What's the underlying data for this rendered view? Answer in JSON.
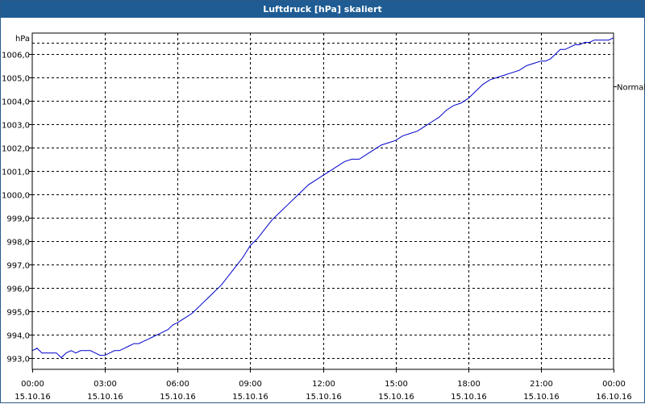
{
  "window": {
    "title": "Luftdruck [hPa] skaliert"
  },
  "chart_data": {
    "type": "line",
    "title": "Luftdruck [hPa] skaliert",
    "ylabel": "hPa",
    "xlabel": "",
    "ylim": [
      992.5,
      1006.9
    ],
    "xlim": [
      0,
      24
    ],
    "grid": true,
    "legend_position": "right",
    "y_ticks": [
      "993,0",
      "994,0",
      "995,0",
      "996,0",
      "997,0",
      "998,0",
      "999,0",
      "1000,0",
      "1001,0",
      "1002,0",
      "1003,0",
      "1004,0",
      "1005,0",
      "1006,0"
    ],
    "y_tick_values": [
      993,
      994,
      995,
      996,
      997,
      998,
      999,
      1000,
      1001,
      1002,
      1003,
      1004,
      1005,
      1006
    ],
    "x_tick_values": [
      0,
      3,
      6,
      9,
      12,
      15,
      18,
      21,
      24
    ],
    "x_ticks": [
      {
        "time": "00:00",
        "date": "15.10.16"
      },
      {
        "time": "03:00",
        "date": "15.10.16"
      },
      {
        "time": "06:00",
        "date": "15.10.16"
      },
      {
        "time": "09:00",
        "date": "15.10.16"
      },
      {
        "time": "12:00",
        "date": "15.10.16"
      },
      {
        "time": "15:00",
        "date": "15.10.16"
      },
      {
        "time": "18:00",
        "date": "15.10.16"
      },
      {
        "time": "21:00",
        "date": "15.10.16"
      },
      {
        "time": "00:00",
        "date": "16.10.16"
      }
    ],
    "series": [
      {
        "name": "Normal",
        "color": "#0000cc",
        "x": [
          0,
          0.2,
          0.4,
          0.6,
          0.8,
          1.0,
          1.2,
          1.4,
          1.6,
          1.8,
          2.0,
          2.2,
          2.4,
          2.6,
          2.8,
          3.0,
          3.2,
          3.4,
          3.6,
          3.8,
          4.0,
          4.2,
          4.4,
          4.6,
          4.8,
          5.0,
          5.2,
          5.4,
          5.6,
          5.8,
          6.0,
          6.3,
          6.6,
          6.9,
          7.2,
          7.5,
          7.8,
          8.1,
          8.4,
          8.7,
          9.0,
          9.3,
          9.6,
          9.9,
          10.2,
          10.5,
          10.8,
          11.1,
          11.4,
          11.7,
          12.0,
          12.3,
          12.6,
          12.9,
          13.2,
          13.5,
          13.8,
          14.1,
          14.4,
          14.7,
          15.0,
          15.3,
          15.6,
          15.9,
          16.2,
          16.5,
          16.8,
          17.1,
          17.4,
          17.7,
          18.0,
          18.3,
          18.6,
          18.9,
          19.2,
          19.5,
          19.8,
          20.1,
          20.4,
          20.7,
          21.0,
          21.2,
          21.4,
          21.6,
          21.8,
          22.0,
          22.2,
          22.4,
          22.6,
          22.8,
          23.0,
          23.2,
          23.4,
          23.6,
          23.8,
          24.0
        ],
        "values": [
          993.3,
          993.4,
          993.2,
          993.2,
          993.2,
          993.2,
          993.0,
          993.2,
          993.3,
          993.2,
          993.3,
          993.3,
          993.3,
          993.2,
          993.1,
          993.1,
          993.2,
          993.3,
          993.3,
          993.4,
          993.5,
          993.6,
          993.6,
          993.7,
          993.8,
          993.9,
          994.0,
          994.1,
          994.2,
          994.4,
          994.5,
          994.7,
          994.9,
          995.2,
          995.5,
          995.8,
          996.1,
          996.5,
          996.9,
          997.3,
          997.8,
          998.1,
          998.5,
          998.9,
          999.2,
          999.5,
          999.8,
          1000.1,
          1000.4,
          1000.6,
          1000.8,
          1001.0,
          1001.2,
          1001.4,
          1001.5,
          1001.5,
          1001.7,
          1001.9,
          1002.1,
          1002.2,
          1002.3,
          1002.5,
          1002.6,
          1002.7,
          1002.9,
          1003.1,
          1003.3,
          1003.6,
          1003.8,
          1003.9,
          1004.1,
          1004.4,
          1004.7,
          1004.9,
          1005.0,
          1005.1,
          1005.2,
          1005.3,
          1005.5,
          1005.6,
          1005.7,
          1005.7,
          1005.8,
          1006.0,
          1006.2,
          1006.2,
          1006.3,
          1006.4,
          1006.4,
          1006.5,
          1006.5,
          1006.6,
          1006.6,
          1006.6,
          1006.6,
          1006.7
        ]
      }
    ]
  }
}
